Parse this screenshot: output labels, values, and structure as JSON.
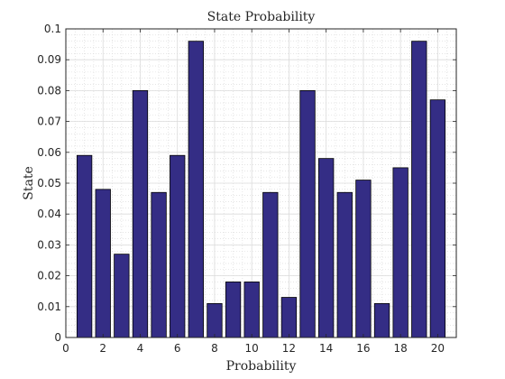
{
  "chart_data": {
    "type": "bar",
    "title": "State Probability",
    "xlabel": "Probability",
    "ylabel": "State",
    "xlim": [
      0,
      21
    ],
    "ylim": [
      0,
      0.1
    ],
    "xticks": [
      0,
      2,
      4,
      6,
      8,
      10,
      12,
      14,
      16,
      18,
      20
    ],
    "yticks": [
      0,
      0.01,
      0.02,
      0.03,
      0.04,
      0.05,
      0.06,
      0.07,
      0.08,
      0.09,
      0.1
    ],
    "ytick_labels": [
      "0",
      "0.01",
      "0.02",
      "0.03",
      "0.04",
      "0.05",
      "0.06",
      "0.07",
      "0.08",
      "0.09",
      "0.1"
    ],
    "grid": true,
    "minor_grid": true,
    "bar_color": "#342d85",
    "bar_edge_color": "#000000",
    "categories": [
      1,
      2,
      3,
      4,
      5,
      6,
      7,
      8,
      9,
      10,
      11,
      12,
      13,
      14,
      15,
      16,
      17,
      18,
      19,
      20
    ],
    "values": [
      0.059,
      0.048,
      0.027,
      0.08,
      0.047,
      0.059,
      0.096,
      0.011,
      0.018,
      0.018,
      0.047,
      0.013,
      0.08,
      0.058,
      0.047,
      0.051,
      0.011,
      0.055,
      0.096,
      0.077
    ]
  }
}
